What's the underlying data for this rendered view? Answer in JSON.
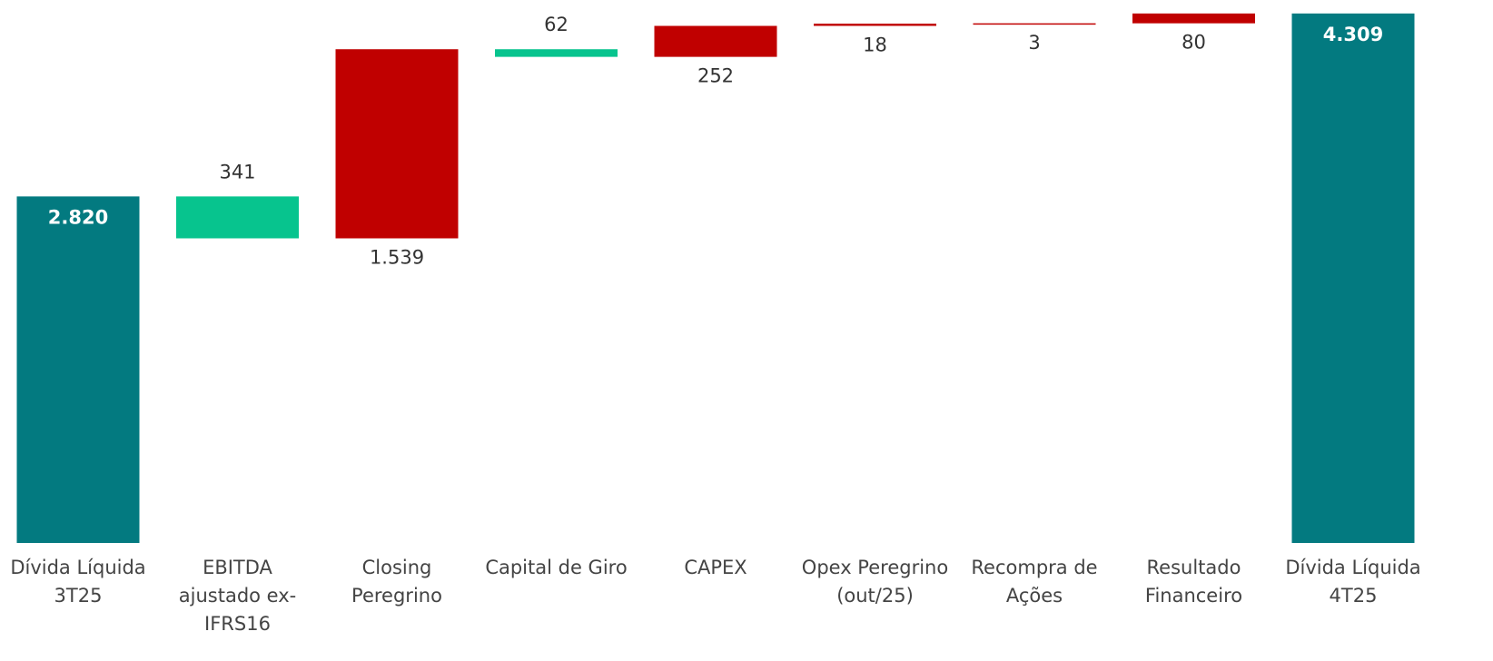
{
  "chart_data": {
    "type": "waterfall",
    "categories": [
      "Dívida Líquida 3T25",
      "EBITDA ajustado ex-IFRS16",
      "Closing Peregrino",
      "Capital de Giro",
      "CAPEX",
      "Opex Peregrino (out/25)",
      "Recompra de Ações",
      "Resultado Financeiro",
      "Dívida Líquida 4T25"
    ],
    "values": [
      2820,
      -341,
      1539,
      -62,
      252,
      18,
      3,
      80,
      4309
    ],
    "value_labels": [
      "2.820",
      "341",
      "1.539",
      "62",
      "252",
      "18",
      "3",
      "80",
      "4.309"
    ],
    "measure": [
      "absolute",
      "relative",
      "relative",
      "relative",
      "relative",
      "relative",
      "relative",
      "relative",
      "total"
    ],
    "colors": [
      "#037a80",
      "#07c48e",
      "#c00000",
      "#07c48e",
      "#c00000",
      "#c00000",
      "#c00000",
      "#c00000",
      "#037a80"
    ],
    "ylim": [
      0,
      4330
    ]
  }
}
